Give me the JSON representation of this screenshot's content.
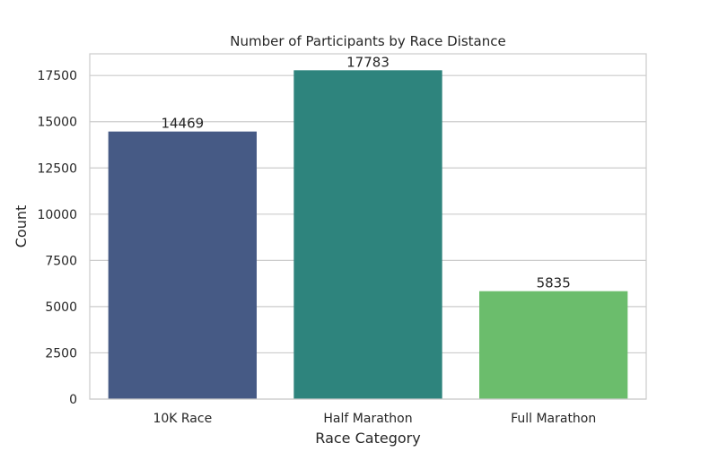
{
  "chart_data": {
    "type": "bar",
    "title": "Number of Participants by Race Distance",
    "xlabel": "Race Category",
    "ylabel": "Count",
    "categories": [
      "10K Race",
      "Half Marathon",
      "Full Marathon"
    ],
    "values": [
      14469,
      17783,
      5835
    ],
    "data_labels": [
      "14469",
      "17783",
      "5835"
    ],
    "colors": [
      "#465a85",
      "#2e847d",
      "#6bbd6c"
    ],
    "ylim": [
      0,
      18672
    ],
    "yticks": [
      0,
      2500,
      5000,
      7500,
      10000,
      12500,
      15000,
      17500
    ],
    "ytick_labels": [
      "0",
      "2500",
      "5000",
      "7500",
      "10000",
      "12500",
      "15000",
      "17500"
    ],
    "grid": "horizontal",
    "legend": "none"
  }
}
